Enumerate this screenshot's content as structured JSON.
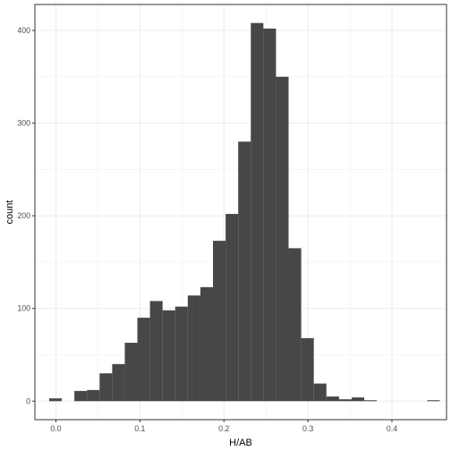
{
  "chart_data": {
    "type": "bar",
    "xlabel": "H/AB",
    "ylabel": "count",
    "xlim": [
      -0.025,
      0.465
    ],
    "ylim": [
      -20,
      428
    ],
    "x_ticks": [
      0.0,
      0.1,
      0.2,
      0.3,
      0.4
    ],
    "x_tick_labels": [
      "0.0",
      "0.1",
      "0.2",
      "0.3",
      "0.4"
    ],
    "y_ticks": [
      0,
      100,
      200,
      300,
      400
    ],
    "y_tick_labels": [
      "0",
      "100",
      "200",
      "300",
      "400"
    ],
    "grid": true,
    "bar_color": "#474747",
    "bins": [
      {
        "x0": -0.008,
        "x1": 0.007,
        "count": 3
      },
      {
        "x0": 0.007,
        "x1": 0.022,
        "count": 0
      },
      {
        "x0": 0.022,
        "x1": 0.037,
        "count": 11
      },
      {
        "x0": 0.037,
        "x1": 0.052,
        "count": 12
      },
      {
        "x0": 0.052,
        "x1": 0.067,
        "count": 30
      },
      {
        "x0": 0.067,
        "x1": 0.082,
        "count": 40
      },
      {
        "x0": 0.082,
        "x1": 0.097,
        "count": 63
      },
      {
        "x0": 0.097,
        "x1": 0.112,
        "count": 90
      },
      {
        "x0": 0.112,
        "x1": 0.127,
        "count": 108
      },
      {
        "x0": 0.127,
        "x1": 0.142,
        "count": 98
      },
      {
        "x0": 0.142,
        "x1": 0.157,
        "count": 102
      },
      {
        "x0": 0.157,
        "x1": 0.172,
        "count": 114
      },
      {
        "x0": 0.172,
        "x1": 0.187,
        "count": 123
      },
      {
        "x0": 0.187,
        "x1": 0.202,
        "count": 173
      },
      {
        "x0": 0.202,
        "x1": 0.217,
        "count": 202
      },
      {
        "x0": 0.217,
        "x1": 0.232,
        "count": 280
      },
      {
        "x0": 0.232,
        "x1": 0.247,
        "count": 408
      },
      {
        "x0": 0.247,
        "x1": 0.262,
        "count": 402
      },
      {
        "x0": 0.262,
        "x1": 0.277,
        "count": 350
      },
      {
        "x0": 0.277,
        "x1": 0.292,
        "count": 165
      },
      {
        "x0": 0.292,
        "x1": 0.307,
        "count": 68
      },
      {
        "x0": 0.307,
        "x1": 0.322,
        "count": 19
      },
      {
        "x0": 0.322,
        "x1": 0.337,
        "count": 5
      },
      {
        "x0": 0.337,
        "x1": 0.352,
        "count": 2
      },
      {
        "x0": 0.352,
        "x1": 0.367,
        "count": 4
      },
      {
        "x0": 0.367,
        "x1": 0.382,
        "count": 1
      },
      {
        "x0": 0.382,
        "x1": 0.397,
        "count": 0
      },
      {
        "x0": 0.397,
        "x1": 0.412,
        "count": 0
      },
      {
        "x0": 0.412,
        "x1": 0.427,
        "count": 0
      },
      {
        "x0": 0.427,
        "x1": 0.442,
        "count": 0
      },
      {
        "x0": 0.442,
        "x1": 0.457,
        "count": 1
      }
    ]
  }
}
